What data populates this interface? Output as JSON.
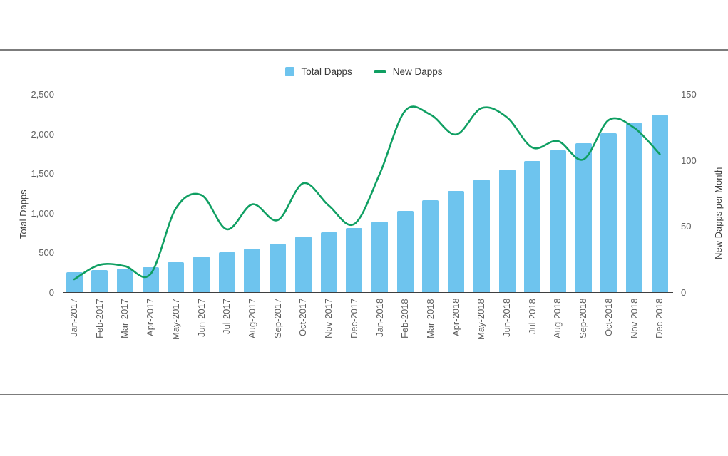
{
  "legend": {
    "items": [
      {
        "label": "Total Dapps",
        "swatch": "square",
        "color": "#6ec4ee"
      },
      {
        "label": "New Dapps",
        "swatch": "line",
        "color": "#0f9f62"
      }
    ]
  },
  "chart_data": {
    "type": "bar",
    "subtype": "combo-bar-line",
    "grid": false,
    "legend_position": "top",
    "x_labels_rotated": true,
    "categories": [
      "Jan-2017",
      "Feb-2017",
      "Mar-2017",
      "Apr-2017",
      "May-2017",
      "Jun-2017",
      "Jul-2017",
      "Aug-2017",
      "Sep-2017",
      "Oct-2017",
      "Nov-2017",
      "Dec-2017",
      "Jan-2018",
      "Feb-2018",
      "Mar-2018",
      "Apr-2018",
      "May-2018",
      "Jun-2018",
      "Jul-2018",
      "Aug-2018",
      "Sep-2018",
      "Oct-2018",
      "Nov-2018",
      "Dec-2018"
    ],
    "series": [
      {
        "name": "Total Dapps",
        "type": "bar",
        "axis": "left",
        "color": "#6ec4ee",
        "values": [
          260,
          281,
          302,
          316,
          384,
          457,
          507,
          554,
          614,
          704,
          765,
          815,
          896,
          1037,
          1170,
          1283,
          1430,
          1558,
          1666,
          1795,
          1886,
          2015,
          2142,
          2247
        ]
      },
      {
        "name": "New Dapps",
        "type": "line",
        "axis": "right",
        "color": "#0f9f62",
        "values": [
          10,
          21,
          20,
          14,
          64,
          74,
          48,
          67,
          55,
          83,
          66,
          52,
          90,
          138,
          135,
          120,
          140,
          133,
          110,
          115,
          101,
          131,
          125,
          105
        ]
      }
    ],
    "left_axis": {
      "title": "Total Dapps",
      "range": [
        0,
        2500
      ],
      "tick_values": [
        0,
        500,
        1000,
        1500,
        2000,
        2500
      ],
      "tick_labels": [
        "0",
        "500",
        "1,000",
        "1,500",
        "2,000",
        "2,500"
      ]
    },
    "right_axis": {
      "title": "New Dapps per Month",
      "range": [
        0,
        150
      ],
      "tick_values": [
        0,
        50,
        100,
        150
      ],
      "tick_labels": [
        "0",
        "50",
        "100",
        "150"
      ]
    }
  }
}
